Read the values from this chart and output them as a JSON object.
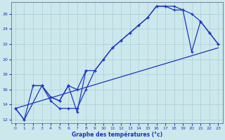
{
  "xlabel": "Graphe des températures (°c)",
  "xlim": [
    -0.5,
    23.5
  ],
  "ylim": [
    11.5,
    27.5
  ],
  "xticks": [
    0,
    1,
    2,
    3,
    4,
    5,
    6,
    7,
    8,
    9,
    10,
    11,
    12,
    13,
    14,
    15,
    16,
    17,
    18,
    19,
    20,
    21,
    22,
    23
  ],
  "yticks": [
    12,
    14,
    16,
    18,
    20,
    22,
    24,
    26
  ],
  "bg_color": "#cce8ec",
  "grid_color": "#aacdd4",
  "line_color": "#1a35c0",
  "line_reg": {
    "x": [
      0,
      23
    ],
    "y": [
      13.5,
      21.5
    ]
  },
  "line_upper": {
    "x": [
      2,
      3,
      4,
      5,
      6,
      7,
      8,
      9,
      10,
      11,
      12,
      13,
      14,
      15,
      16,
      17,
      18,
      19,
      20,
      21,
      22,
      23
    ],
    "y": [
      16.5,
      16.5,
      15.0,
      14.5,
      16.5,
      16.0,
      18.5,
      18.5,
      20.0,
      21.5,
      22.5,
      23.5,
      24.5,
      25.5,
      27.0,
      27.0,
      27.0,
      26.5,
      26.0,
      25.0,
      23.5,
      22.0
    ]
  },
  "line_lower": {
    "x": [
      0,
      1,
      2,
      3,
      4,
      5,
      6,
      7,
      8,
      9,
      10,
      11,
      12,
      13,
      14,
      15,
      16,
      17,
      18,
      19,
      20,
      21,
      22,
      23
    ],
    "y": [
      13.5,
      12.0,
      16.5,
      16.5,
      14.5,
      13.5,
      13.5,
      13.5,
      16.0,
      18.5,
      20.0,
      21.5,
      22.5,
      23.5,
      24.5,
      25.5,
      27.0,
      27.0,
      26.5,
      26.5,
      21.0,
      25.0,
      23.5,
      22.0
    ]
  },
  "line_zigzag": {
    "x": [
      0,
      1,
      3,
      4,
      5,
      6,
      7,
      8
    ],
    "y": [
      13.5,
      12.0,
      16.5,
      15.0,
      14.5,
      16.5,
      13.0,
      18.5
    ]
  }
}
